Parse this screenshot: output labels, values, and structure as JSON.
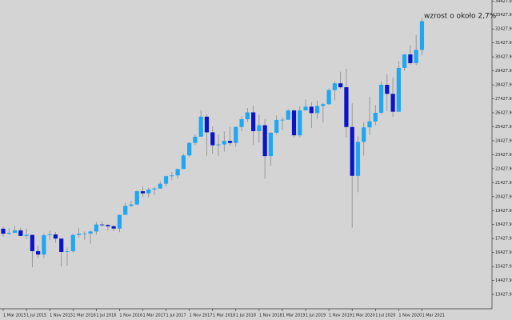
{
  "chart_data": {
    "type": "candlestick",
    "annotation": "wzrost o około 2,7%",
    "up_color": "#1ea7f2",
    "down_color": "#0a14c8",
    "wick_color": "#8a8a8a",
    "categories": [
      "1 Mar 2015",
      null,
      null,
      null,
      "1 Jul 2015",
      null,
      null,
      null,
      "1 Nov 2015",
      null,
      null,
      null,
      "1 Mar 2016",
      null,
      null,
      null,
      "1 Jul 2016",
      null,
      null,
      null,
      "1 Nov 2016",
      null,
      null,
      null,
      "1 Mar 2017",
      null,
      null,
      null,
      "1 Jul 2017",
      null,
      null,
      null,
      "1 Nov 2017",
      null,
      null,
      null,
      "1 Mar 2018",
      null,
      null,
      null,
      "1 Jul 2018",
      null,
      null,
      null,
      "1 Nov 2018",
      null,
      null,
      null,
      "1 Mar 2019",
      null,
      null,
      null,
      "1 Jul 2019",
      null,
      null,
      null,
      "1 Nov 2019",
      null,
      null,
      null,
      "1 Mar 2020",
      null,
      null,
      null,
      "1 Jul 2020",
      null,
      null,
      null,
      "1 Nov 2020",
      null,
      null,
      null,
      "1 Mar 2021"
    ],
    "open": [
      18133,
      17776,
      17841,
      18011,
      17620,
      17690,
      16528,
      16285,
      17664,
      17720,
      17425,
      16466,
      16517,
      17685,
      17774,
      17787,
      17930,
      18432,
      18401,
      18308,
      18142,
      19124,
      19763,
      19864,
      20812,
      20663,
      20941,
      21009,
      21350,
      21891,
      21948,
      22405,
      23377,
      24272,
      24719,
      26149,
      25029,
      24103,
      24163,
      24416,
      24271,
      25415,
      25965,
      26458,
      25116,
      25538,
      23327,
      24999,
      25916,
      25929,
      26593,
      24815,
      26600,
      26864,
      26403,
      26917,
      27046,
      28051,
      28538,
      28256,
      25409,
      21917,
      24346,
      25383,
      25813,
      26428,
      28430,
      27782,
      26502,
      29638,
      30606,
      29983,
      30932
    ],
    "high": [
      18288,
      18176,
      18351,
      18190,
      18130,
      17710,
      16930,
      17800,
      17980,
      17890,
      17425,
      16790,
      17790,
      18170,
      17930,
      18020,
      18620,
      18670,
      18460,
      18400,
      19150,
      19990,
      20130,
      20890,
      21170,
      21070,
      21110,
      21530,
      21930,
      22180,
      22420,
      23490,
      24330,
      24880,
      26620,
      26310,
      25450,
      24860,
      25090,
      25400,
      25460,
      26170,
      26770,
      26950,
      26280,
      25980,
      25060,
      26240,
      26110,
      26700,
      26700,
      26910,
      27400,
      27190,
      27310,
      27120,
      28170,
      28700,
      29370,
      29568,
      27100,
      24760,
      25760,
      27580,
      27000,
      28660,
      29200,
      28960,
      30120,
      30640,
      31270,
      32010,
      33230
    ],
    "low": [
      17580,
      17680,
      17840,
      17580,
      17400,
      15370,
      16010,
      16010,
      17320,
      17130,
      15450,
      15500,
      16410,
      17480,
      17330,
      17060,
      17710,
      18300,
      18000,
      17950,
      17880,
      19120,
      19680,
      19830,
      20410,
      20380,
      20550,
      20990,
      21160,
      21600,
      21710,
      22400,
      23240,
      24120,
      24740,
      23360,
      23510,
      23340,
      23640,
      24080,
      23990,
      25120,
      25770,
      24120,
      24270,
      21712,
      22640,
      24870,
      25210,
      25920,
      24680,
      24680,
      26600,
      25340,
      25980,
      25740,
      27000,
      27320,
      28160,
      24680,
      18213,
      20740,
      23360,
      24840,
      25520,
      26310,
      26540,
      26140,
      26490,
      29440,
      29860,
      29850,
      30530
    ],
    "close": [
      17776,
      17841,
      18011,
      17620,
      17690,
      16528,
      16285,
      17664,
      17720,
      17425,
      16466,
      16517,
      17685,
      17774,
      17787,
      17930,
      18432,
      18401,
      18308,
      18142,
      19124,
      19763,
      19864,
      20812,
      20663,
      20941,
      21009,
      21350,
      21891,
      21948,
      22405,
      23377,
      24272,
      24719,
      26149,
      25029,
      24103,
      24163,
      24416,
      24271,
      25415,
      25965,
      26458,
      25116,
      25538,
      23327,
      24999,
      25916,
      25929,
      26593,
      24815,
      26600,
      26864,
      26403,
      26917,
      27046,
      28051,
      28538,
      28256,
      25409,
      21917,
      24346,
      25383,
      25813,
      26428,
      28430,
      27782,
      26502,
      29638,
      30606,
      29983,
      30932,
      32982
    ],
    "ylim": [
      12400,
      34500
    ],
    "yticks": [
      {
        "value": 13427.9,
        "label": "13427.90"
      },
      {
        "value": 14427.9,
        "label": "14427.90"
      },
      {
        "value": 15427.9,
        "label": "15427.90"
      },
      {
        "value": 16427.9,
        "label": "16427.90"
      },
      {
        "value": 17427.9,
        "label": "17427.90"
      },
      {
        "value": 18427.9,
        "label": "18427.90"
      },
      {
        "value": 19427.9,
        "label": "19427.90"
      },
      {
        "value": 20427.9,
        "label": "20427.90"
      },
      {
        "value": 21427.9,
        "label": "21427.90"
      },
      {
        "value": 22427.9,
        "label": "22427.90"
      },
      {
        "value": 23427.9,
        "label": "23427.90"
      },
      {
        "value": 24427.9,
        "label": "24427.90"
      },
      {
        "value": 25427.9,
        "label": "25427.90"
      },
      {
        "value": 26427.9,
        "label": "26427.90"
      },
      {
        "value": 27427.9,
        "label": "27427.90"
      },
      {
        "value": 28427.9,
        "label": "28427.90"
      },
      {
        "value": 29427.9,
        "label": "29427.90"
      },
      {
        "value": 30427.9,
        "label": "30427.90"
      },
      {
        "value": 31427.9,
        "label": "31427.90"
      },
      {
        "value": 32427.9,
        "label": "32427.90"
      },
      {
        "value": 33427.9,
        "label": "33427.90"
      },
      {
        "value": 34427.9,
        "label": "34427.90"
      }
    ]
  }
}
